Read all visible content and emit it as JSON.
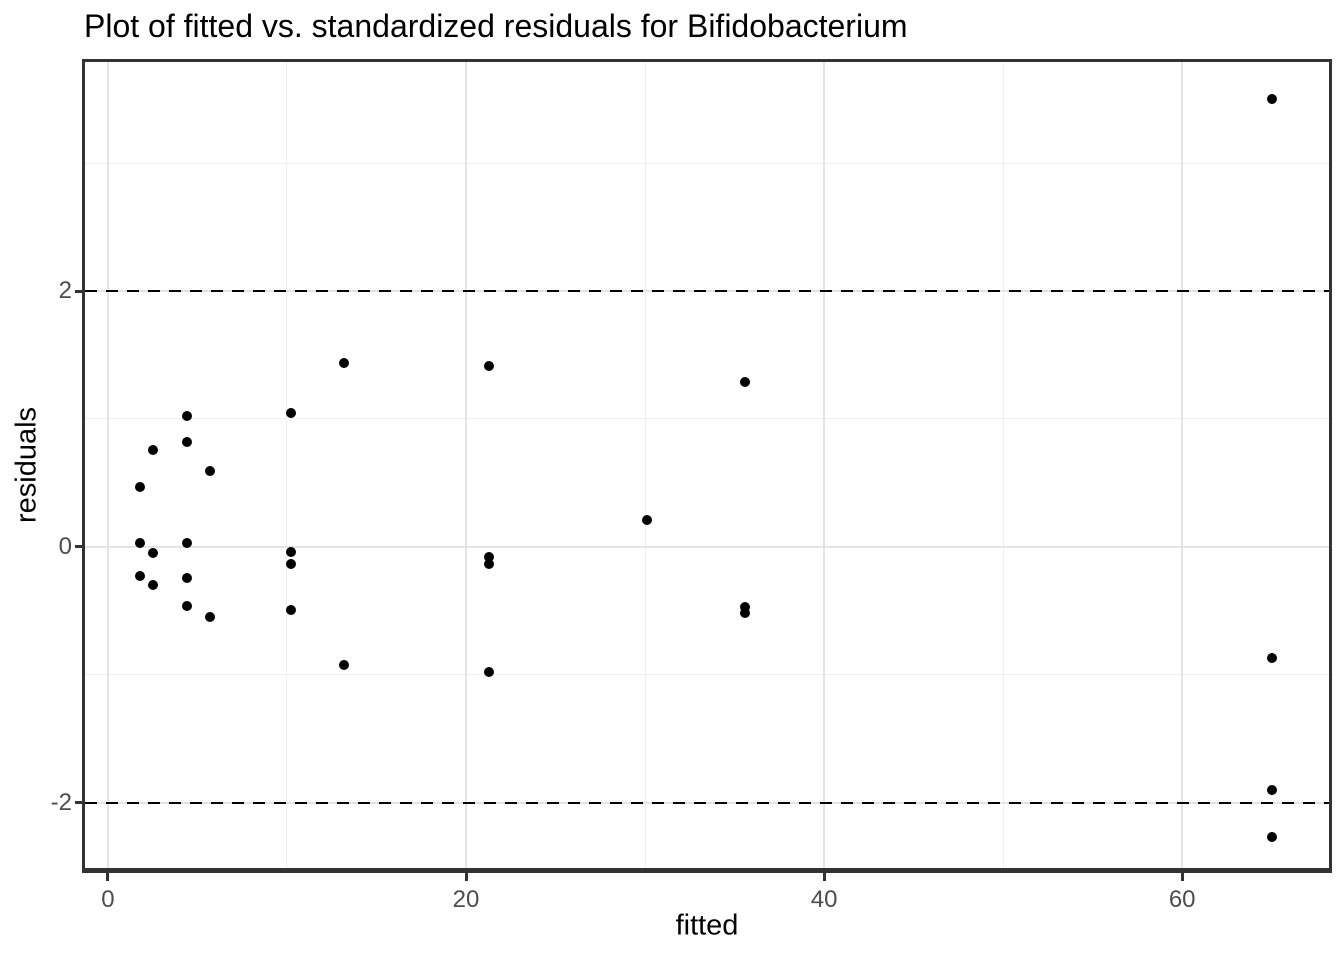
{
  "title": "Plot of fitted vs. standardized residuals for Bifidobacterium",
  "colors": {
    "point": "#000000",
    "reference_line": "#000000",
    "grid_major": "#e4e4e4",
    "grid_minor": "#efefef",
    "panel_border": "#333333",
    "tick_text": "#4d4d4d",
    "title_text": "#000000",
    "background": "#ffffff"
  },
  "chart_data": {
    "type": "scatter",
    "title": "Plot of fitted vs. standardized residuals for Bifidobacterium",
    "xlabel": "fitted",
    "ylabel": "residuals",
    "xlim": [
      -1.28,
      68.2
    ],
    "ylim": [
      -2.51,
      3.79
    ],
    "x_ticks": [
      0,
      20,
      40,
      60
    ],
    "y_ticks": [
      -2,
      0,
      2
    ],
    "x_minor_ticks": [
      10,
      30,
      50
    ],
    "y_minor_ticks": [
      -1,
      1,
      3
    ],
    "grid": "on",
    "legend": "none",
    "point_color": "#000000",
    "reference_lines": {
      "style": "dashed",
      "color": "#000000",
      "values": [
        2,
        -2
      ]
    },
    "points": [
      [
        1.8,
        0.47
      ],
      [
        1.8,
        0.03
      ],
      [
        1.8,
        -0.23
      ],
      [
        2.5,
        0.76
      ],
      [
        2.5,
        -0.05
      ],
      [
        2.5,
        -0.3
      ],
      [
        4.4,
        1.02
      ],
      [
        4.4,
        0.82
      ],
      [
        4.4,
        0.03
      ],
      [
        4.4,
        -0.24
      ],
      [
        4.4,
        -0.46
      ],
      [
        5.7,
        0.59
      ],
      [
        5.7,
        -0.55
      ],
      [
        10.2,
        1.05
      ],
      [
        10.2,
        -0.04
      ],
      [
        10.2,
        -0.13
      ],
      [
        10.2,
        -0.49
      ],
      [
        13.2,
        1.44
      ],
      [
        13.2,
        -0.92
      ],
      [
        21.3,
        1.41
      ],
      [
        21.3,
        -0.08
      ],
      [
        21.3,
        -0.13
      ],
      [
        21.3,
        -0.98
      ],
      [
        30.1,
        0.21
      ],
      [
        35.6,
        1.29
      ],
      [
        35.6,
        -0.47
      ],
      [
        35.6,
        -0.52
      ],
      [
        65.0,
        3.5
      ],
      [
        65.0,
        -0.87
      ],
      [
        65.0,
        -1.9
      ],
      [
        65.0,
        -2.27
      ]
    ]
  }
}
